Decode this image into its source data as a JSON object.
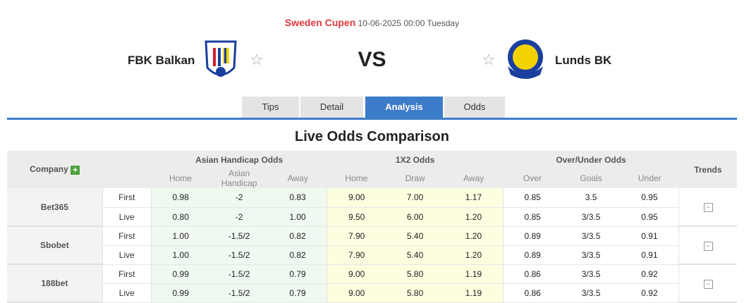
{
  "match": {
    "league": "Sweden Cupen",
    "datetime": "10-06-2025 00:00 Tuesday",
    "home": "FBK Balkan",
    "away": "Lunds BK",
    "vs": "VS"
  },
  "tabs": [
    "Tips",
    "Detail",
    "Analysis",
    "Odds"
  ],
  "active_tab": "Analysis",
  "section_title": "Live Odds Comparison",
  "table": {
    "headers": {
      "company": "Company",
      "ah": "Asian Handicap Odds",
      "x12": "1X2 Odds",
      "ou": "Over/Under Odds",
      "trends": "Trends"
    },
    "subheaders": [
      "Home",
      "Asian Handicap",
      "Away",
      "Home",
      "Draw",
      "Away",
      "Over",
      "Goals",
      "Under"
    ],
    "companies": [
      {
        "name": "Bet365",
        "rows": [
          {
            "type": "First",
            "v": [
              "0.98",
              "-2",
              "0.83",
              "9.00",
              "7.00",
              "1.17",
              "0.85",
              "3.5",
              "0.95"
            ]
          },
          {
            "type": "Live",
            "v": [
              "0.80",
              "-2",
              "1.00",
              "9.50",
              "6.00",
              "1.20",
              "0.85",
              "3/3.5",
              "0.95"
            ]
          }
        ]
      },
      {
        "name": "Sbobet",
        "rows": [
          {
            "type": "First",
            "v": [
              "1.00",
              "-1.5/2",
              "0.82",
              "7.90",
              "5.40",
              "1.20",
              "0.89",
              "3/3.5",
              "0.91"
            ]
          },
          {
            "type": "Live",
            "v": [
              "1.00",
              "-1.5/2",
              "0.82",
              "7.90",
              "5.40",
              "1.20",
              "0.89",
              "3/3.5",
              "0.91"
            ]
          }
        ]
      },
      {
        "name": "188bet",
        "rows": [
          {
            "type": "First",
            "v": [
              "0.99",
              "-1.5/2",
              "0.79",
              "9.00",
              "5.80",
              "1.19",
              "0.86",
              "3/3.5",
              "0.92"
            ]
          },
          {
            "type": "Live",
            "v": [
              "0.99",
              "-1.5/2",
              "0.79",
              "9.00",
              "5.80",
              "1.19",
              "0.86",
              "3/3.5",
              "0.92"
            ]
          }
        ]
      }
    ]
  },
  "colors": {
    "accent": "#3d7cc9",
    "league": "#e0383e",
    "ah_bg": "#eff9ef",
    "x12_bg": "#fdfde0"
  }
}
